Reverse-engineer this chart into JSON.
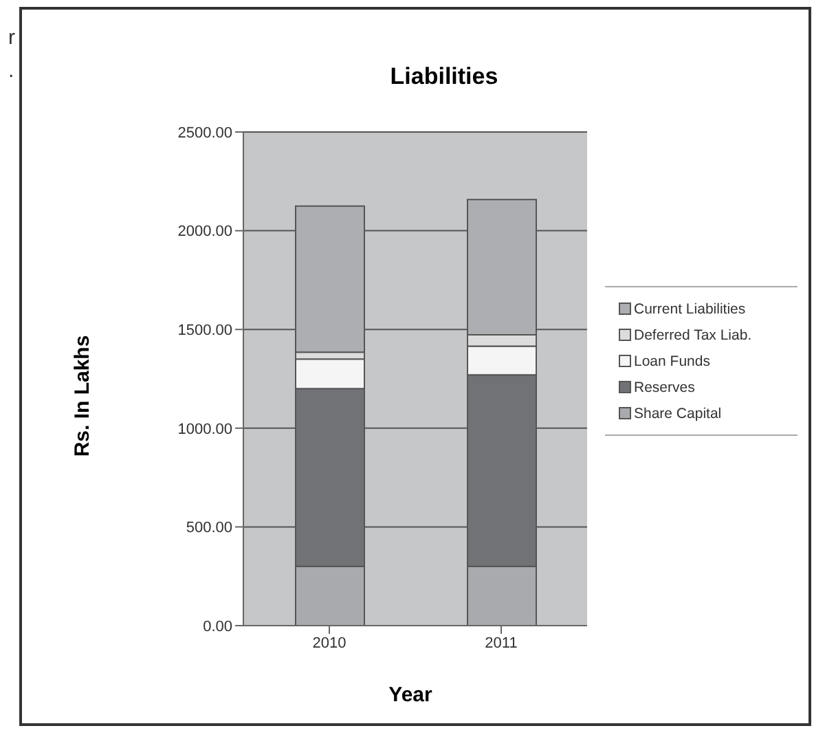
{
  "chart_data": {
    "type": "bar",
    "title": "Liabilities",
    "xlabel": "Year",
    "ylabel": "Rs. In Lakhs",
    "categories": [
      "2010",
      "2011"
    ],
    "stacked": true,
    "series": [
      {
        "name": "Share Capital",
        "color": "#a9aaad",
        "values": [
          300,
          300
        ]
      },
      {
        "name": "Reserves",
        "color": "#717275",
        "values": [
          900,
          970
        ]
      },
      {
        "name": "Loan Funds",
        "color": "#f5f5f5",
        "values": [
          150,
          145
        ]
      },
      {
        "name": "Deferred Tax Liab.",
        "color": "#dcdcdc",
        "values": [
          35,
          58
        ]
      },
      {
        "name": "Current Liabilities",
        "color": "#adaeb1",
        "values": [
          740,
          685
        ]
      }
    ],
    "ylim": [
      0,
      2500
    ],
    "yticks": [
      {
        "value": 0,
        "label": "0.00"
      },
      {
        "value": 500,
        "label": "500.00"
      },
      {
        "value": 1000,
        "label": "1000.00"
      },
      {
        "value": 1500,
        "label": "1500.00"
      },
      {
        "value": 2000,
        "label": "2000.00"
      },
      {
        "value": 2500,
        "label": "2500.00"
      }
    ],
    "grid": "y",
    "legend": "right",
    "annotations": [
      "r",
      "."
    ]
  }
}
